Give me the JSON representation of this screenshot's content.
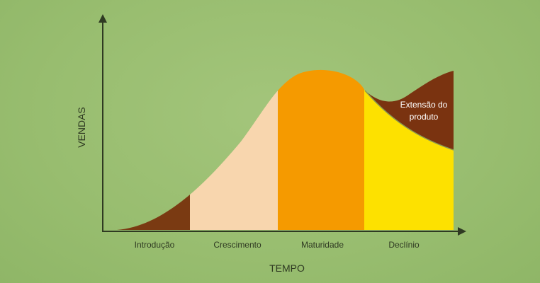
{
  "axes": {
    "y_label": "VENDAS",
    "x_label": "TEMPO"
  },
  "stages": [
    {
      "name": "Introdução",
      "color": "#7a3a12"
    },
    {
      "name": "Crescimento",
      "color": "#f8d6ae"
    },
    {
      "name": "Maturidade",
      "color": "#f59a00"
    },
    {
      "name": "Declínio",
      "color": "#fde100"
    }
  ],
  "extension": {
    "line1": "Extensão do",
    "line2": "produto",
    "color": "#7a3310"
  },
  "colors": {
    "axis": "#2f3a22"
  }
}
